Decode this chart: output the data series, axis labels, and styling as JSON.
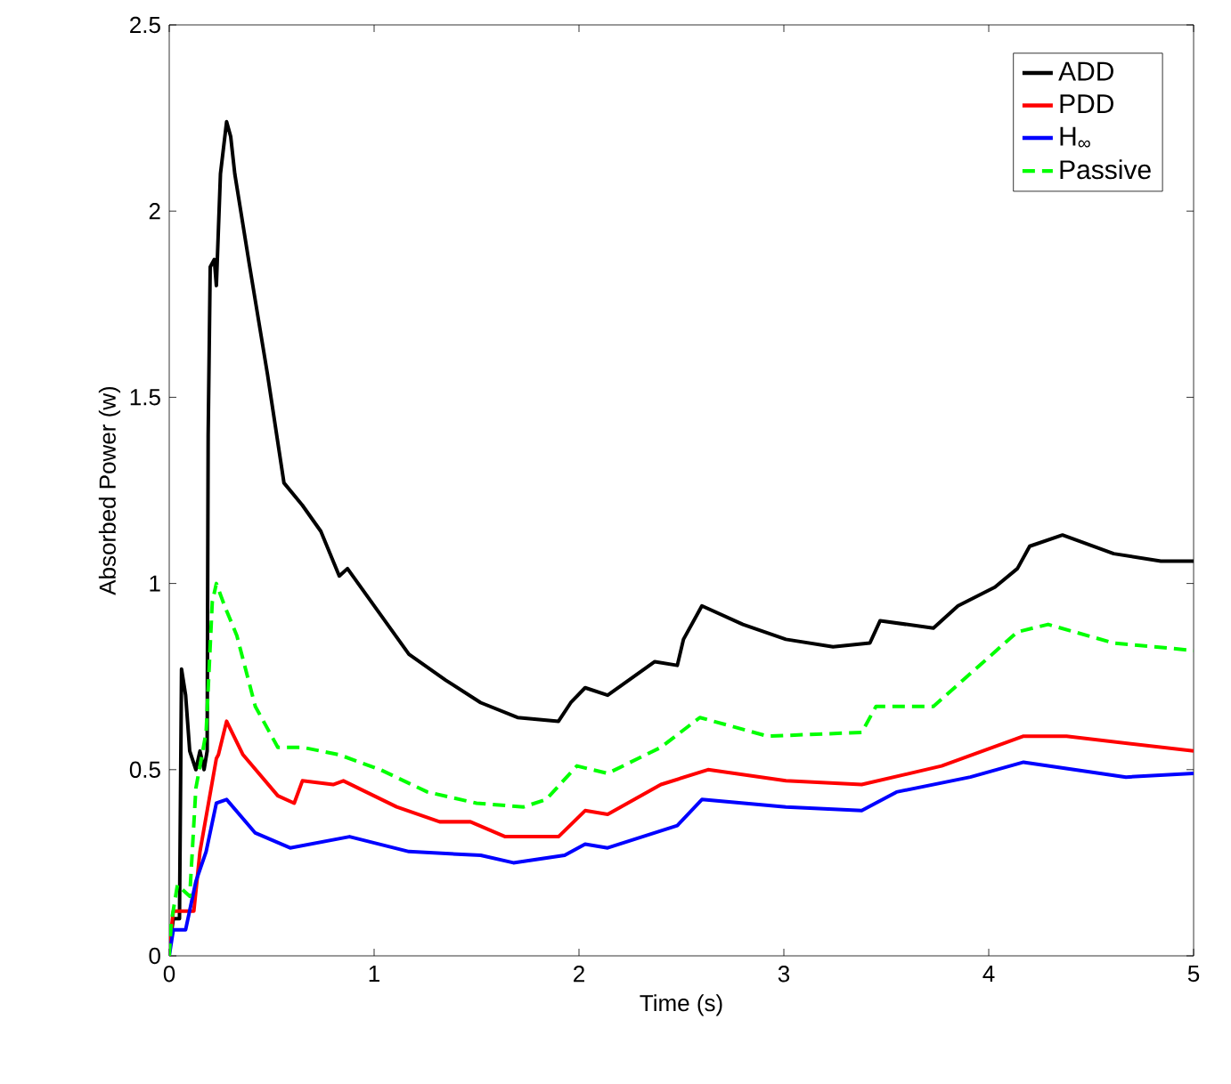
{
  "chart_data": {
    "type": "line",
    "xlabel": "Time (s)",
    "ylabel": "Absorbed Power (w)",
    "xlim": [
      0,
      5
    ],
    "ylim": [
      0,
      2.5
    ],
    "xticks": [
      0,
      1,
      2,
      3,
      4,
      5
    ],
    "yticks": [
      0,
      0.5,
      1,
      1.5,
      2,
      2.5
    ],
    "legend": "top right",
    "grid": false,
    "series": [
      {
        "name": "ADD",
        "color": "#000000",
        "line_style": "solid",
        "x": [
          0,
          0.02,
          0.05,
          0.06,
          0.08,
          0.1,
          0.13,
          0.15,
          0.17,
          0.185,
          0.19,
          0.2,
          0.22,
          0.23,
          0.25,
          0.28,
          0.3,
          0.32,
          0.39,
          0.48,
          0.56,
          0.65,
          0.74,
          0.83,
          0.87,
          1.0,
          1.17,
          1.35,
          1.52,
          1.7,
          1.9,
          1.96,
          2.03,
          2.14,
          2.37,
          2.48,
          2.51,
          2.6,
          2.8,
          3.01,
          3.24,
          3.42,
          3.47,
          3.73,
          3.85,
          4.03,
          4.14,
          4.2,
          4.36,
          4.61,
          4.84,
          5
        ],
        "values": [
          0.02,
          0.1,
          0.1,
          0.77,
          0.7,
          0.55,
          0.5,
          0.55,
          0.5,
          0.55,
          1.4,
          1.85,
          1.87,
          1.8,
          2.1,
          2.24,
          2.2,
          2.1,
          1.86,
          1.56,
          1.27,
          1.21,
          1.14,
          1.02,
          1.04,
          0.94,
          0.81,
          0.74,
          0.68,
          0.64,
          0.63,
          0.68,
          0.72,
          0.7,
          0.79,
          0.78,
          0.85,
          0.94,
          0.89,
          0.85,
          0.83,
          0.84,
          0.9,
          0.88,
          0.94,
          0.99,
          1.04,
          1.1,
          1.13,
          1.08,
          1.06,
          1.06
        ]
      },
      {
        "name": "PDD",
        "color": "#ff0000",
        "line_style": "solid",
        "x": [
          0,
          0.02,
          0.12,
          0.15,
          0.23,
          0.24,
          0.28,
          0.36,
          0.53,
          0.61,
          0.65,
          0.8,
          0.85,
          1.11,
          1.32,
          1.47,
          1.64,
          1.81,
          1.9,
          2.03,
          2.14,
          2.4,
          2.63,
          3.01,
          3.38,
          3.77,
          4.17,
          4.38,
          5
        ],
        "values": [
          0.02,
          0.12,
          0.12,
          0.28,
          0.53,
          0.54,
          0.63,
          0.54,
          0.43,
          0.41,
          0.47,
          0.46,
          0.47,
          0.4,
          0.36,
          0.36,
          0.32,
          0.32,
          0.32,
          0.39,
          0.38,
          0.46,
          0.5,
          0.47,
          0.46,
          0.51,
          0.59,
          0.59,
          0.55
        ]
      },
      {
        "name": "H$_{∞}$",
        "color": "#0000ff",
        "line_style": "solid",
        "x": [
          0,
          0.02,
          0.08,
          0.13,
          0.18,
          0.23,
          0.28,
          0.42,
          0.59,
          0.88,
          1.17,
          1.52,
          1.68,
          1.93,
          2.03,
          2.14,
          2.48,
          2.6,
          3.01,
          3.38,
          3.55,
          3.91,
          4.17,
          4.67,
          5
        ],
        "values": [
          0,
          0.07,
          0.07,
          0.2,
          0.28,
          0.41,
          0.42,
          0.33,
          0.29,
          0.32,
          0.28,
          0.27,
          0.25,
          0.27,
          0.3,
          0.29,
          0.35,
          0.42,
          0.4,
          0.39,
          0.44,
          0.48,
          0.52,
          0.48,
          0.49
        ]
      },
      {
        "name": "Passive",
        "color": "#00ff00",
        "line_style": "dashed",
        "x": [
          0,
          0.01,
          0.04,
          0.1,
          0.13,
          0.18,
          0.21,
          0.23,
          0.27,
          0.33,
          0.42,
          0.53,
          0.65,
          0.83,
          1.03,
          1.26,
          1.5,
          1.73,
          1.84,
          1.99,
          2.14,
          2.4,
          2.59,
          2.92,
          3.38,
          3.45,
          3.73,
          4.14,
          4.29,
          4.61,
          5
        ],
        "values": [
          0,
          0.09,
          0.19,
          0.16,
          0.45,
          0.6,
          0.95,
          1.0,
          0.94,
          0.86,
          0.67,
          0.56,
          0.56,
          0.54,
          0.5,
          0.44,
          0.41,
          0.4,
          0.42,
          0.51,
          0.49,
          0.56,
          0.64,
          0.59,
          0.6,
          0.67,
          0.67,
          0.87,
          0.89,
          0.84,
          0.82
        ]
      }
    ]
  }
}
